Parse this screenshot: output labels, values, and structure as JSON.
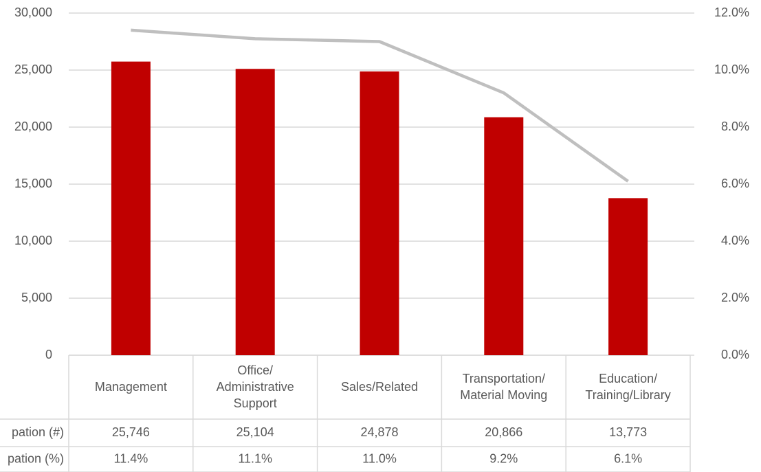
{
  "chart_data": {
    "type": "bar",
    "categories": [
      "Management",
      "Office/\nAdministrative\nSupport",
      "Sales/Related",
      "Transportation/\nMaterial Moving",
      "Education/\nTraining/Library"
    ],
    "series": [
      {
        "name": "pation (#)",
        "color": "#c00000",
        "values": [
          25746,
          25104,
          24878,
          20866,
          13773
        ],
        "value_labels": [
          "25,746",
          "25,104",
          "24,878",
          "20,866",
          "13,773"
        ]
      },
      {
        "name": "pation (%)",
        "color": "#bfbfbf",
        "type": "line",
        "axis": "y2",
        "values": [
          11.4,
          11.1,
          11.0,
          9.2,
          6.1
        ],
        "value_labels": [
          "11.4%",
          "11.1%",
          "11.0%",
          "9.2%",
          "6.1%"
        ]
      }
    ],
    "ylim": [
      0,
      30000
    ],
    "yticks": [
      0,
      {
        "value": 5000,
        "label": "5,000"
      },
      {
        "value": 10000,
        "label": "10,000"
      },
      {
        "value": 15000,
        "label": "15,000"
      },
      {
        "value": 20000,
        "label": "20,000"
      },
      {
        "value": 25000,
        "label": "25,000"
      },
      {
        "value": 30000,
        "label": "30,000"
      }
    ],
    "y2lim": [
      0,
      12
    ],
    "y2ticks": [
      {
        "value": 0,
        "label": "0.0%"
      },
      {
        "value": 2,
        "label": "2.0%"
      },
      {
        "value": 4,
        "label": "4.0%"
      },
      {
        "value": 6,
        "label": "6.0%"
      },
      {
        "value": 8,
        "label": "8.0%"
      },
      {
        "value": 10,
        "label": "10.0%"
      },
      {
        "value": 12,
        "label": "12.0%"
      }
    ],
    "grid": true
  }
}
